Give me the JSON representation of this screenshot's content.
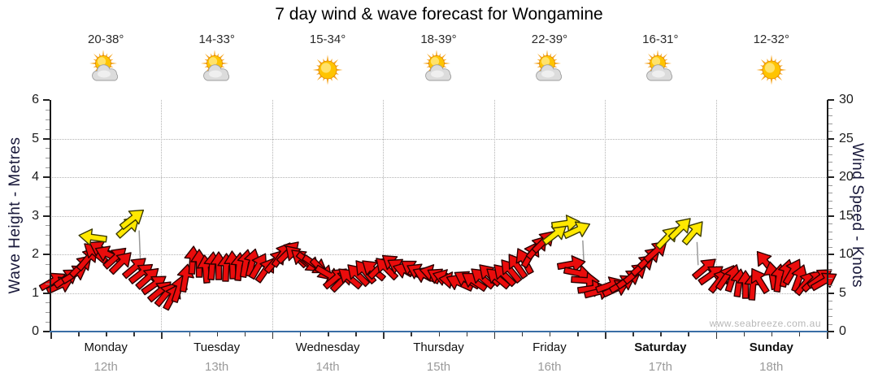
{
  "title": "7 day wind & wave forecast for Wongamine",
  "watermark": "www.seabreeze.com.au",
  "left_axis": {
    "label": "Wave Height - Metres",
    "ticks": [
      0,
      1,
      2,
      3,
      4,
      5,
      6
    ]
  },
  "right_axis": {
    "label": "Wind Speed - Knots",
    "ticks": [
      0,
      5,
      10,
      15,
      20,
      25,
      30
    ]
  },
  "days": [
    {
      "name": "Monday",
      "date": "12th",
      "temp": "20-38°",
      "icon": "sun-cloud",
      "bold": false
    },
    {
      "name": "Tuesday",
      "date": "13th",
      "temp": "14-33°",
      "icon": "sun-cloud",
      "bold": false
    },
    {
      "name": "Wednesday",
      "date": "14th",
      "temp": "15-34°",
      "icon": "sun",
      "bold": false
    },
    {
      "name": "Thursday",
      "date": "15th",
      "temp": "18-39°",
      "icon": "sun-cloud",
      "bold": false
    },
    {
      "name": "Friday",
      "date": "16th",
      "temp": "22-39°",
      "icon": "sun-cloud",
      "bold": false
    },
    {
      "name": "Saturday",
      "date": "17th",
      "temp": "16-31°",
      "icon": "sun-cloud",
      "bold": true
    },
    {
      "name": "Sunday",
      "date": "18th",
      "temp": "12-32°",
      "icon": "sun",
      "bold": true
    }
  ],
  "colors": {
    "arrow_red": "#ea0c0c",
    "arrow_red_stroke": "#2a0000",
    "arrow_yellow": "#ffe800",
    "arrow_yellow_stroke": "#3a3a00",
    "axis_blue": "#3a6ea5",
    "grid_gray": "#b3b3b3",
    "date_gray": "#9a9a9a",
    "watermark_gray": "#b8b8b8",
    "sun_ray": "#f5a623",
    "sun_core": "#ffc400",
    "cloud": "#dcdcdc"
  },
  "chart_data": {
    "type": "wind-arrow-timeseries",
    "ylim_knots": [
      0,
      30
    ],
    "ylim_metres": [
      0,
      6
    ],
    "grid": {
      "h_lines_knots": [
        5,
        10,
        15,
        20,
        25
      ],
      "v_lines_at_day_boundaries": true
    },
    "arrow_format": [
      "t_week_fraction_days",
      "wind_speed_knots",
      "rotation_deg_css_0_is_east",
      "color r=red y=yellow"
    ],
    "arrows": [
      [
        0.02,
        6.5,
        -30,
        "r"
      ],
      [
        0.09,
        6.0,
        -25,
        "r"
      ],
      [
        0.15,
        7.0,
        -35,
        "r"
      ],
      [
        0.22,
        7.5,
        -32,
        "r"
      ],
      [
        0.28,
        8.5,
        -45,
        "r"
      ],
      [
        0.34,
        9.5,
        -50,
        "r"
      ],
      [
        0.4,
        10.2,
        -140,
        "r"
      ],
      [
        0.46,
        10.6,
        -150,
        "r"
      ],
      [
        0.38,
        12.2,
        -172,
        "y"
      ],
      [
        0.52,
        10.0,
        -155,
        "r"
      ],
      [
        0.59,
        9.6,
        -42,
        "r"
      ],
      [
        0.7,
        13.6,
        -42,
        "y"
      ],
      [
        0.74,
        14.6,
        -38,
        "y"
      ],
      [
        0.64,
        9.0,
        -45,
        "r"
      ],
      [
        0.76,
        8.3,
        -40,
        "r"
      ],
      [
        0.82,
        7.6,
        -38,
        "r"
      ],
      [
        0.88,
        6.9,
        -42,
        "r"
      ],
      [
        0.94,
        6.1,
        -35,
        "r"
      ],
      [
        0.99,
        5.3,
        -40,
        "r"
      ],
      [
        1.04,
        4.8,
        -50,
        "r"
      ],
      [
        1.1,
        4.5,
        -62,
        "r"
      ],
      [
        1.16,
        5.6,
        -72,
        "r"
      ],
      [
        1.22,
        7.0,
        -80,
        "r"
      ],
      [
        1.28,
        9.3,
        -86,
        "r"
      ],
      [
        1.34,
        8.8,
        -90,
        "r"
      ],
      [
        1.4,
        8.1,
        -95,
        "r"
      ],
      [
        1.46,
        8.5,
        -85,
        "r"
      ],
      [
        1.52,
        8.5,
        -90,
        "r"
      ],
      [
        1.58,
        8.3,
        -88,
        "r"
      ],
      [
        1.64,
        8.6,
        -92,
        "r"
      ],
      [
        1.7,
        8.4,
        -85,
        "r"
      ],
      [
        1.76,
        8.8,
        -80,
        "r"
      ],
      [
        1.82,
        9.0,
        -76,
        "r"
      ],
      [
        1.88,
        8.5,
        -60,
        "r"
      ],
      [
        1.94,
        8.0,
        -55,
        "r"
      ],
      [
        2.03,
        9.2,
        -50,
        "r"
      ],
      [
        2.09,
        10.0,
        -55,
        "r"
      ],
      [
        2.15,
        10.3,
        -45,
        "r"
      ],
      [
        2.21,
        9.8,
        -135,
        "r"
      ],
      [
        2.27,
        9.4,
        -140,
        "r"
      ],
      [
        2.33,
        9.0,
        38,
        "r"
      ],
      [
        2.39,
        8.6,
        34,
        "r"
      ],
      [
        2.45,
        8.0,
        45,
        "r"
      ],
      [
        2.51,
        7.4,
        30,
        "r"
      ],
      [
        2.57,
        6.9,
        -40,
        "r"
      ],
      [
        2.63,
        6.6,
        -45,
        "r"
      ],
      [
        2.7,
        7.0,
        -140,
        "r"
      ],
      [
        2.77,
        7.4,
        -135,
        "r"
      ],
      [
        2.84,
        7.8,
        -130,
        "r"
      ],
      [
        2.91,
        8.0,
        -140,
        "r"
      ],
      [
        2.97,
        8.3,
        -45,
        "r"
      ],
      [
        3.03,
        8.2,
        -135,
        "r"
      ],
      [
        3.09,
        8.7,
        -142,
        "r"
      ],
      [
        3.15,
        8.3,
        -150,
        "r"
      ],
      [
        3.21,
        7.9,
        -162,
        "r"
      ],
      [
        3.27,
        8.1,
        -146,
        "r"
      ],
      [
        3.33,
        7.7,
        -152,
        "r"
      ],
      [
        3.39,
        7.3,
        -156,
        "r"
      ],
      [
        3.45,
        7.6,
        -166,
        "r"
      ],
      [
        3.51,
        7.1,
        -150,
        "r"
      ],
      [
        3.57,
        6.9,
        -162,
        "r"
      ],
      [
        3.63,
        6.6,
        -172,
        "r"
      ],
      [
        3.69,
        6.3,
        -156,
        "r"
      ],
      [
        3.75,
        6.7,
        -150,
        "r"
      ],
      [
        3.82,
        6.5,
        -146,
        "r"
      ],
      [
        3.89,
        6.9,
        -140,
        "r"
      ],
      [
        3.96,
        7.4,
        -135,
        "r"
      ],
      [
        4.03,
        7.0,
        -140,
        "r"
      ],
      [
        4.09,
        7.4,
        -135,
        "r"
      ],
      [
        4.15,
        7.9,
        -130,
        "r"
      ],
      [
        4.21,
        8.5,
        -125,
        "r"
      ],
      [
        4.27,
        9.2,
        -118,
        "r"
      ],
      [
        4.33,
        10.0,
        -60,
        "r"
      ],
      [
        4.39,
        10.9,
        -50,
        "r"
      ],
      [
        4.45,
        11.7,
        -45,
        "r"
      ],
      [
        4.55,
        12.6,
        -38,
        "y"
      ],
      [
        4.65,
        14.0,
        -8,
        "y"
      ],
      [
        4.75,
        13.2,
        -25,
        "y"
      ],
      [
        4.7,
        8.7,
        -10,
        "r"
      ],
      [
        4.76,
        7.6,
        12,
        "r"
      ],
      [
        4.82,
        6.6,
        4,
        "r"
      ],
      [
        4.88,
        5.6,
        -8,
        "r"
      ],
      [
        4.94,
        5.2,
        -14,
        "r"
      ],
      [
        5.04,
        6.0,
        -20,
        "r"
      ],
      [
        5.1,
        5.6,
        -25,
        "r"
      ],
      [
        5.16,
        6.2,
        -30,
        "r"
      ],
      [
        5.22,
        6.8,
        -35,
        "r"
      ],
      [
        5.28,
        7.6,
        -40,
        "r"
      ],
      [
        5.34,
        8.6,
        -42,
        "r"
      ],
      [
        5.4,
        9.6,
        -44,
        "r"
      ],
      [
        5.46,
        10.4,
        -42,
        "r"
      ],
      [
        5.56,
        12.2,
        -46,
        "y"
      ],
      [
        5.68,
        13.4,
        -45,
        "y"
      ],
      [
        5.8,
        12.8,
        -50,
        "y"
      ],
      [
        5.9,
        8.2,
        -40,
        "r"
      ],
      [
        5.96,
        7.4,
        -35,
        "r"
      ],
      [
        6.03,
        6.6,
        -52,
        "r"
      ],
      [
        6.09,
        7.1,
        -56,
        "r"
      ],
      [
        6.15,
        6.9,
        -72,
        "r"
      ],
      [
        6.21,
        6.3,
        -82,
        "r"
      ],
      [
        6.27,
        6.1,
        -90,
        "r"
      ],
      [
        6.33,
        5.9,
        -86,
        "r"
      ],
      [
        6.39,
        6.6,
        -122,
        "r"
      ],
      [
        6.45,
        9.0,
        -128,
        "r"
      ],
      [
        6.51,
        7.3,
        -100,
        "r"
      ],
      [
        6.57,
        7.0,
        -82,
        "r"
      ],
      [
        6.63,
        7.6,
        -76,
        "r"
      ],
      [
        6.69,
        7.8,
        -60,
        "r"
      ],
      [
        6.75,
        6.9,
        -70,
        "r"
      ],
      [
        6.81,
        6.3,
        -52,
        "r"
      ],
      [
        6.88,
        6.6,
        -44,
        "r"
      ],
      [
        6.94,
        7.0,
        -36,
        "r"
      ],
      [
        6.98,
        6.5,
        -30,
        "r"
      ]
    ],
    "stem_format": [
      "t1",
      "knots1",
      "t2",
      "knots2"
    ],
    "stems": [
      [
        0.8,
        13.1,
        0.81,
        9.5
      ],
      [
        4.8,
        11.8,
        4.81,
        8.8
      ],
      [
        5.83,
        11.6,
        5.84,
        8.6
      ]
    ]
  }
}
